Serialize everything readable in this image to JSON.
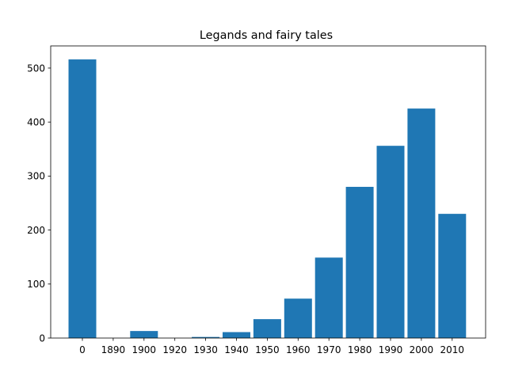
{
  "chart_data": {
    "type": "bar",
    "title": "Legands and fairy tales",
    "xlabel": "",
    "ylabel": "",
    "categories": [
      "0",
      "1890",
      "1900",
      "1920",
      "1930",
      "1940",
      "1950",
      "1960",
      "1970",
      "1980",
      "1990",
      "2000",
      "2010"
    ],
    "values": [
      516,
      0,
      13,
      0,
      2,
      11,
      35,
      73,
      149,
      280,
      356,
      425,
      230
    ],
    "ylim": [
      0,
      541
    ],
    "yticks": [
      0,
      100,
      200,
      300,
      400,
      500
    ],
    "grid": false,
    "bar_color": "#1f77b4"
  }
}
